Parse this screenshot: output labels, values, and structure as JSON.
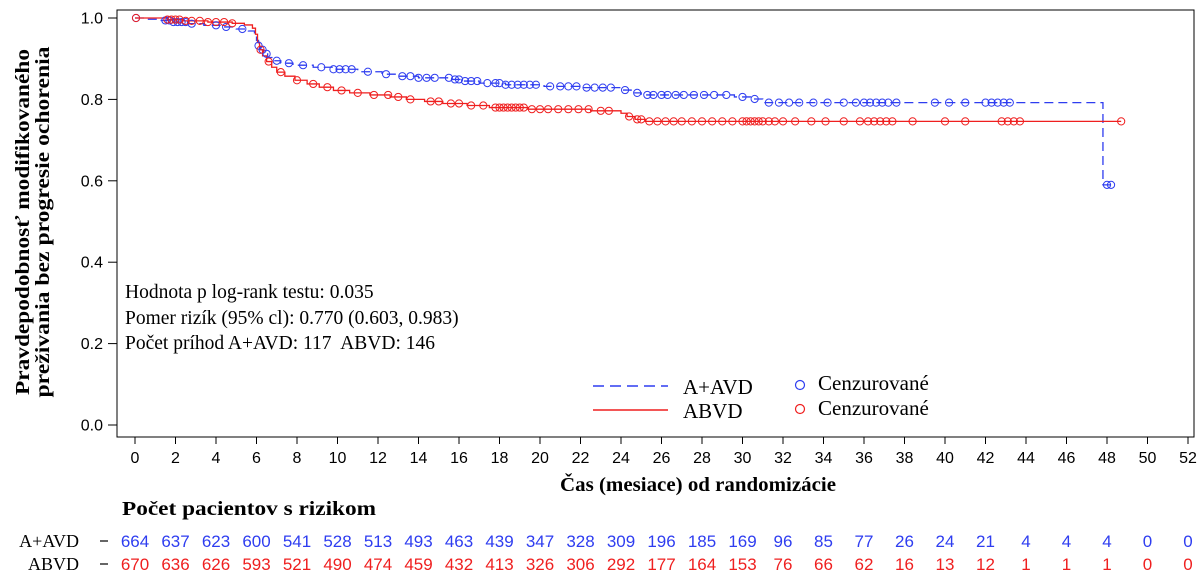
{
  "chart_data": {
    "type": "line",
    "step": true,
    "xlabel": "Čas (mesiace) od randomizácie",
    "ylabel": [
      "Pravdepodobnosť modifikovaného",
      "preživania bez progresie ochorenia"
    ],
    "xlim": [
      0,
      52
    ],
    "ylim": [
      0,
      1
    ],
    "xticks": [
      0,
      2,
      4,
      6,
      8,
      10,
      12,
      14,
      16,
      18,
      20,
      22,
      24,
      26,
      28,
      30,
      32,
      34,
      36,
      38,
      40,
      42,
      44,
      46,
      48,
      50,
      52
    ],
    "yticks": [
      "0.0",
      "0.2",
      "0.4",
      "0.6",
      "0.8",
      "1.0"
    ],
    "grid": false,
    "legend_position": "lower-center",
    "censor_label": "Cenzurované",
    "annotations": [
      "Hodnota p log-rank testu: 0.035",
      "Pomer rizík (95% cl): 0.770 (0.603, 0.983)",
      "Počet príhod A+AVD: 117  ABVD: 146"
    ],
    "series": [
      {
        "name": "A+AVD",
        "color": "#2e3df0",
        "line_style": "dashed",
        "steps": [
          [
            0.0,
            1.0
          ],
          [
            0.5,
            0.997
          ],
          [
            1.2,
            0.994
          ],
          [
            1.9,
            0.99
          ],
          [
            2.6,
            0.986
          ],
          [
            3.4,
            0.982
          ],
          [
            4.2,
            0.978
          ],
          [
            5.0,
            0.973
          ],
          [
            5.6,
            0.968
          ],
          [
            5.9,
            0.96
          ],
          [
            6.0,
            0.945
          ],
          [
            6.1,
            0.932
          ],
          [
            6.2,
            0.922
          ],
          [
            6.35,
            0.912
          ],
          [
            6.55,
            0.903
          ],
          [
            6.8,
            0.895
          ],
          [
            7.2,
            0.889
          ],
          [
            7.8,
            0.884
          ],
          [
            8.8,
            0.879
          ],
          [
            9.8,
            0.874
          ],
          [
            11.0,
            0.868
          ],
          [
            12.2,
            0.862
          ],
          [
            13.0,
            0.857
          ],
          [
            14.0,
            0.853
          ],
          [
            15.6,
            0.849
          ],
          [
            16.2,
            0.845
          ],
          [
            17.0,
            0.84
          ],
          [
            18.3,
            0.836
          ],
          [
            20.2,
            0.832
          ],
          [
            22.0,
            0.829
          ],
          [
            24.0,
            0.823
          ],
          [
            24.5,
            0.816
          ],
          [
            25.0,
            0.811
          ],
          [
            29.6,
            0.806
          ],
          [
            30.4,
            0.801
          ],
          [
            31.0,
            0.792
          ],
          [
            47.8,
            0.59
          ]
        ],
        "censored": [
          0.05,
          1.5,
          1.7,
          1.9,
          2.1,
          2.3,
          2.5,
          2.8,
          4.0,
          4.5,
          5.3,
          6.1,
          6.3,
          6.5,
          7.0,
          7.6,
          8.3,
          9.2,
          9.8,
          10.1,
          10.4,
          10.7,
          11.5,
          12.4,
          13.2,
          13.6,
          14.0,
          14.4,
          14.8,
          15.5,
          15.8,
          16.0,
          16.3,
          16.6,
          16.9,
          17.4,
          17.8,
          18.0,
          18.3,
          18.6,
          18.9,
          19.2,
          19.5,
          19.8,
          20.5,
          21.0,
          21.4,
          21.8,
          22.3,
          22.7,
          23.1,
          23.5,
          24.2,
          24.8,
          25.3,
          25.6,
          26.0,
          26.3,
          26.7,
          27.1,
          27.6,
          28.1,
          28.6,
          29.2,
          30.0,
          30.6,
          31.3,
          31.8,
          32.3,
          32.8,
          33.5,
          34.2,
          35.0,
          35.6,
          36.0,
          36.3,
          36.6,
          36.9,
          37.2,
          37.6,
          39.5,
          40.2,
          41.0,
          42.0,
          42.3,
          42.6,
          42.9,
          43.2,
          48.0,
          48.2
        ]
      },
      {
        "name": "ABVD",
        "color": "#ef1f1f",
        "line_style": "solid",
        "steps": [
          [
            0.0,
            1.0
          ],
          [
            1.6,
            0.996
          ],
          [
            2.4,
            0.993
          ],
          [
            3.6,
            0.99
          ],
          [
            4.8,
            0.987
          ],
          [
            5.4,
            0.983
          ],
          [
            5.8,
            0.975
          ],
          [
            5.95,
            0.96
          ],
          [
            6.05,
            0.94
          ],
          [
            6.15,
            0.922
          ],
          [
            6.3,
            0.907
          ],
          [
            6.5,
            0.893
          ],
          [
            6.75,
            0.879
          ],
          [
            7.0,
            0.867
          ],
          [
            7.4,
            0.857
          ],
          [
            7.9,
            0.847
          ],
          [
            8.5,
            0.838
          ],
          [
            9.1,
            0.83
          ],
          [
            9.8,
            0.822
          ],
          [
            10.6,
            0.816
          ],
          [
            11.6,
            0.811
          ],
          [
            12.6,
            0.806
          ],
          [
            13.4,
            0.8
          ],
          [
            14.3,
            0.795
          ],
          [
            15.2,
            0.79
          ],
          [
            16.4,
            0.785
          ],
          [
            17.5,
            0.78
          ],
          [
            19.4,
            0.776
          ],
          [
            22.5,
            0.772
          ],
          [
            24.0,
            0.766
          ],
          [
            24.3,
            0.758
          ],
          [
            24.7,
            0.751
          ],
          [
            25.2,
            0.746
          ]
        ],
        "censored": [
          0.05,
          1.6,
          1.8,
          2.0,
          2.2,
          2.5,
          2.8,
          3.2,
          3.6,
          4.0,
          4.4,
          4.8,
          6.2,
          6.6,
          7.2,
          8.0,
          8.8,
          9.5,
          10.2,
          11.0,
          11.8,
          12.5,
          13.0,
          13.6,
          14.6,
          15.0,
          15.6,
          16.0,
          16.6,
          17.2,
          17.8,
          18.0,
          18.2,
          18.4,
          18.6,
          18.8,
          19.0,
          19.2,
          19.6,
          20.0,
          20.4,
          20.9,
          21.4,
          21.9,
          22.4,
          23.0,
          23.4,
          24.4,
          24.8,
          25.0,
          25.4,
          25.8,
          26.2,
          26.6,
          27.0,
          27.5,
          28.0,
          28.5,
          29.0,
          29.5,
          30.0,
          30.2,
          30.4,
          30.6,
          30.8,
          31.0,
          31.3,
          31.6,
          32.0,
          32.6,
          33.4,
          34.1,
          35.0,
          35.8,
          36.2,
          36.5,
          36.8,
          37.1,
          37.4,
          38.4,
          40.0,
          41.0,
          42.8,
          43.1,
          43.4,
          43.7,
          48.7
        ]
      }
    ],
    "at_risk": {
      "title": "Počet pacientov s rizikom",
      "rows": [
        {
          "label": "A+AVD",
          "values": [
            664,
            637,
            623,
            600,
            541,
            528,
            513,
            493,
            463,
            439,
            347,
            328,
            309,
            196,
            185,
            169,
            96,
            85,
            77,
            26,
            24,
            21,
            4,
            4,
            4,
            0,
            0
          ]
        },
        {
          "label": "ABVD",
          "values": [
            670,
            636,
            626,
            593,
            521,
            490,
            474,
            459,
            432,
            413,
            326,
            306,
            292,
            177,
            164,
            153,
            76,
            66,
            62,
            16,
            13,
            12,
            1,
            1,
            1,
            0,
            0
          ]
        }
      ]
    }
  }
}
